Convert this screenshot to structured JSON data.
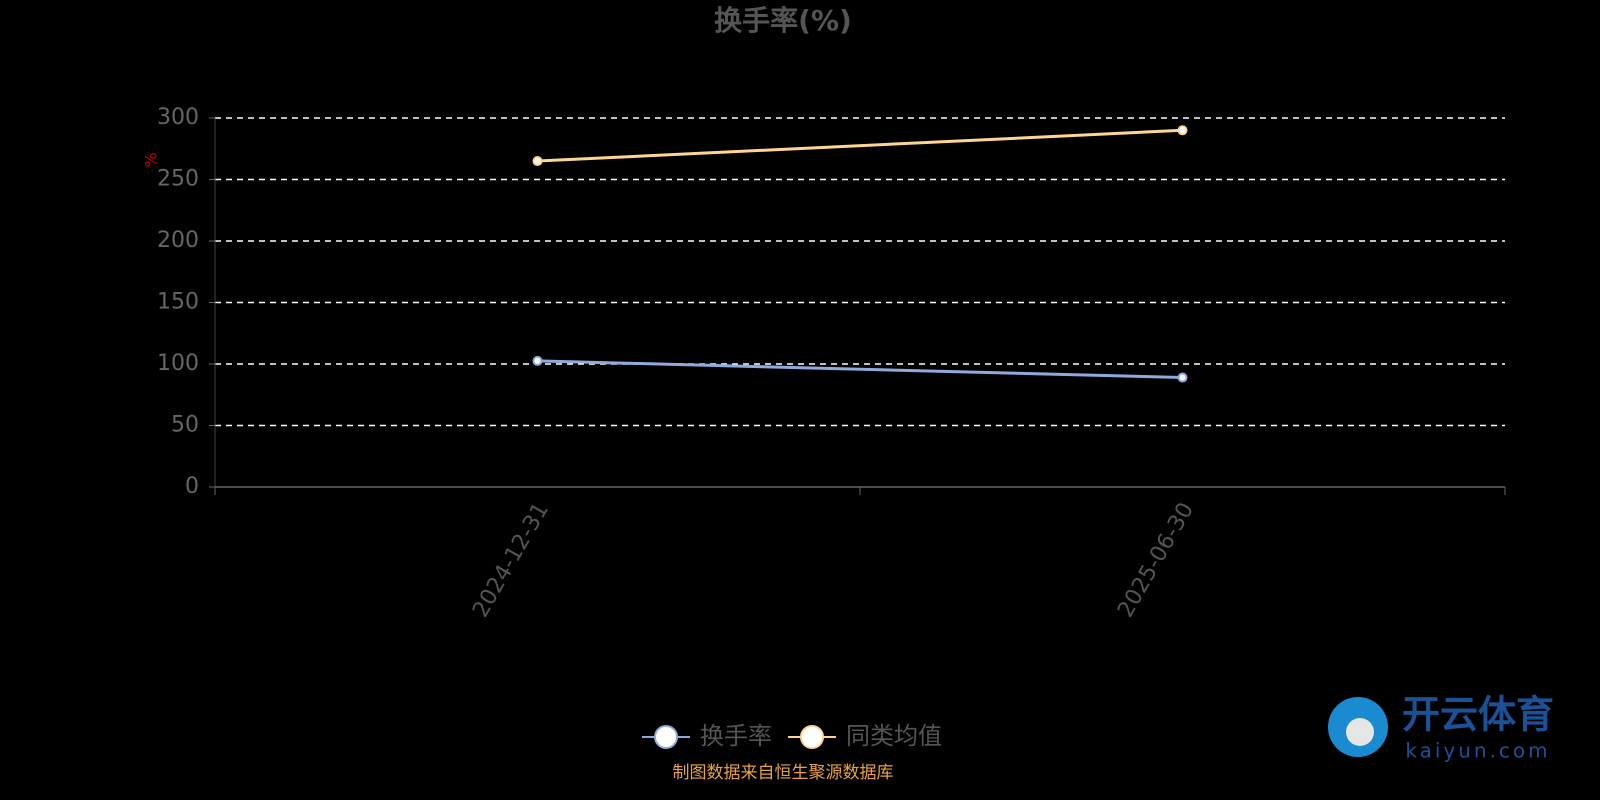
{
  "chart_data": {
    "type": "line",
    "title": "换手率(%)",
    "y_label": "%",
    "categories": [
      "2024-12-31",
      "2025-06-30"
    ],
    "series": [
      {
        "name": "换手率",
        "color": "#8faadc",
        "values": [
          102.5,
          89
        ]
      },
      {
        "name": "同类均值",
        "color": "#ffd591",
        "values": [
          265,
          290
        ]
      }
    ],
    "ylim": [
      0,
      300
    ],
    "yticks": [
      0,
      50,
      100,
      150,
      200,
      250,
      300
    ],
    "grid": true,
    "legend": "bottom",
    "source": "制图数据来自恒生聚源数据库",
    "watermark": {
      "title": "开云体育",
      "subtitle": "kaiyun.com"
    }
  }
}
